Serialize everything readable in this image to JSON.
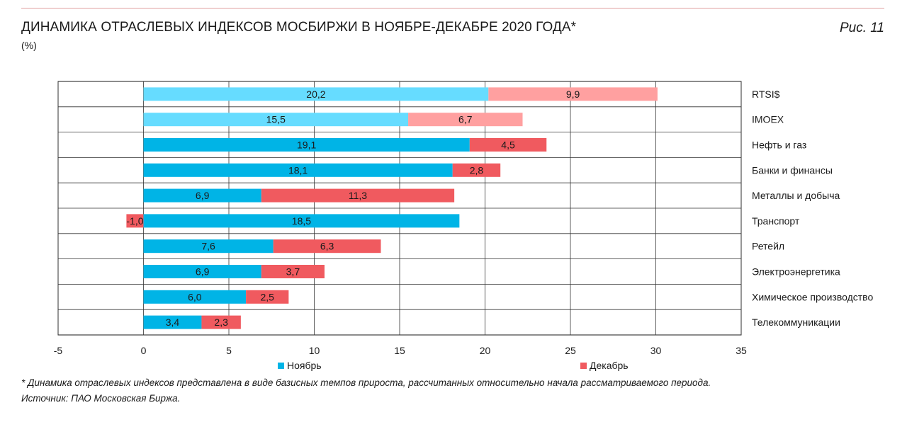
{
  "header": {
    "title": "ДИНАМИКА ОТРАСЛЕВЫХ ИНДЕКСОВ МОСБИРЖИ В НОЯБРЕ-ДЕКАБРЕ 2020 ГОДА*",
    "subtitle": "(%)",
    "figure_label": "Рис. 11"
  },
  "footer": {
    "note": "* Динамика отраслевых индексов представлена в виде базисных темпов прироста, рассчитанных относительно начала рассматриваемого периода.",
    "source": "Источник: ПАО Московская Биржа."
  },
  "chart_data": {
    "type": "bar",
    "orientation": "horizontal",
    "stacked": true,
    "categories": [
      "RTSI$",
      "IMOEX",
      "Нефть и газ",
      "Банки и финансы",
      "Металлы и добыча",
      "Транспорт",
      "Ретейл",
      "Электроэнергетика",
      "Химическое производство",
      "Телекоммуникации"
    ],
    "series": [
      {
        "name": "Ноябрь",
        "values": [
          20.2,
          15.5,
          19.1,
          18.1,
          6.9,
          18.5,
          7.6,
          6.9,
          6.0,
          3.4
        ],
        "labels": [
          "20,2",
          "15,5",
          "19,1",
          "18,1",
          "6,9",
          "18,5",
          "7,6",
          "6,9",
          "6,0",
          "3,4"
        ],
        "color": "#00b4e6",
        "highlight_color": "#66dcff"
      },
      {
        "name": "Декабрь",
        "values": [
          9.9,
          6.7,
          4.5,
          2.8,
          11.3,
          -1.0,
          6.3,
          3.7,
          2.5,
          2.3
        ],
        "labels": [
          "9,9",
          "6,7",
          "4,5",
          "2,8",
          "11,3",
          "-1,0",
          "6,3",
          "3,7",
          "2,5",
          "2,3"
        ],
        "color": "#f05a5f",
        "highlight_color": "#ffa0a0"
      }
    ],
    "highlighted_categories": [
      "RTSI$",
      "IMOEX"
    ],
    "xlim": [
      -5,
      35
    ],
    "xticks": [
      -5,
      0,
      5,
      10,
      15,
      20,
      25,
      30,
      35
    ],
    "grid": true,
    "legend_position": "bottom"
  }
}
